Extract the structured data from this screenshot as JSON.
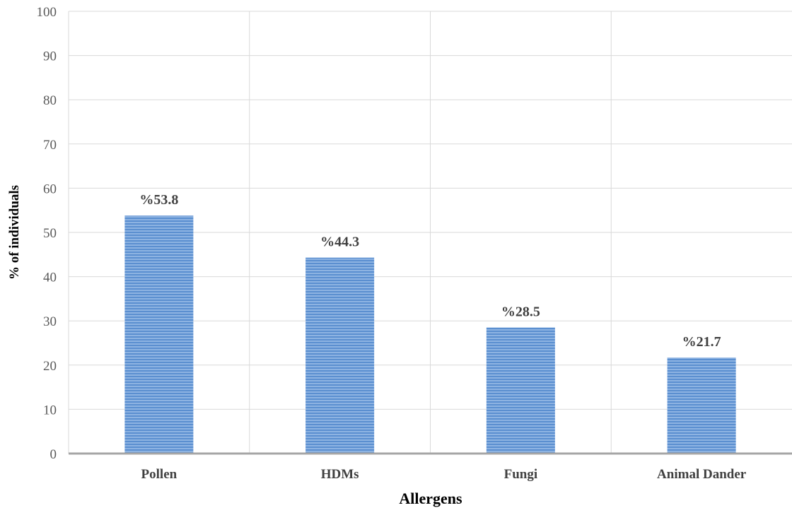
{
  "chart_data": {
    "type": "bar",
    "categories": [
      "Pollen",
      "HDMs",
      "Fungi",
      "Animal Dander"
    ],
    "values": [
      53.8,
      44.3,
      28.5,
      21.7
    ],
    "data_labels": [
      "%53.8",
      "%44.3",
      "%28.5",
      "%21.7"
    ],
    "title": "",
    "xlabel": "Allergens",
    "ylabel": "% of individuals",
    "ylim": [
      0,
      100
    ],
    "yticks": [
      0,
      10,
      20,
      30,
      40,
      50,
      60,
      70,
      80,
      90,
      100
    ],
    "grid": true,
    "legend": "none",
    "bar_color": "#8db3e2",
    "bar_stripe_color": "#5b8fd0"
  }
}
